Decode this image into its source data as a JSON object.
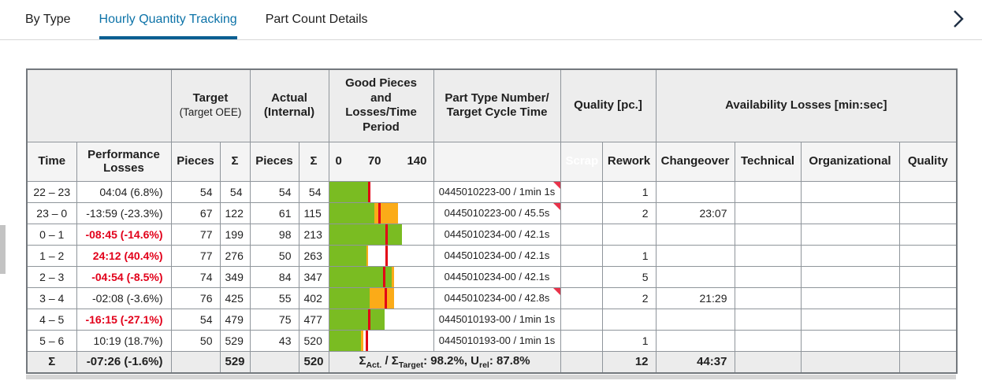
{
  "tabs": {
    "items": [
      {
        "label": "By Type",
        "active": false
      },
      {
        "label": "Hourly Quantity Tracking",
        "active": true
      },
      {
        "label": "Part Count Details",
        "active": false
      }
    ]
  },
  "colors": {
    "tab_active": "#0d73a8",
    "tab_underline": "#0a5f92",
    "scrap": "#ea3e53",
    "rework": "#f5b440",
    "changeover": "#b7d387",
    "technical": "#88a9c6",
    "organizational": "#f8d286",
    "quality": "#ee8090",
    "bar_green": "#7abc22",
    "bar_loss": "#fbab18",
    "bar_target": "#e30016",
    "alert_red": "#e2001a",
    "flag": "#e8334a"
  },
  "table": {
    "group_header": {
      "target_title": "Target",
      "target_sub": "(Target OEE)",
      "actual_title": "Actual (Internal)",
      "good_pieces": "Good Pieces and Losses/Time Period",
      "part_type": "Part Type Number/ Target Cycle Time",
      "quality_pc": "Quality [pc.]",
      "availability": "Availability Losses [min:sec]"
    },
    "col_header": {
      "time": "Time",
      "performance": "Performance Losses",
      "pieces1": "Pieces",
      "sigma1": "Σ",
      "pieces2": "Pieces",
      "sigma2": "Σ",
      "axis": {
        "min": "0",
        "mid": "70",
        "max": "140"
      },
      "scrap": "Scrap",
      "rework": "Rework",
      "changeover": "Changeover",
      "technical": "Technical",
      "organizational": "Organizational",
      "quality": "Quality"
    },
    "axis_max": 140,
    "rows": [
      {
        "time": "22 – 23",
        "perf": "04:04 (6.8%)",
        "perf_alert": false,
        "t_pieces": "54",
        "t_sum": "54",
        "a_pieces": "54",
        "a_sum": "54",
        "bar": {
          "green": 53,
          "loss_end": 55,
          "target": 54
        },
        "part": "0445010223-00 / 1min 1s",
        "flag": true,
        "scrap": "",
        "rework": "1",
        "changeover": "",
        "technical": "",
        "organizational": "",
        "quality": ""
      },
      {
        "time": "23 – 0",
        "perf": "-13:59 (-23.3%)",
        "perf_alert": false,
        "t_pieces": "67",
        "t_sum": "122",
        "a_pieces": "61",
        "a_sum": "115",
        "bar": {
          "green": 61,
          "loss_end": 93,
          "target": 67
        },
        "part": "0445010223-00 / 45.5s",
        "flag": true,
        "scrap": "",
        "rework": "2",
        "changeover": "23:07",
        "technical": "",
        "organizational": "",
        "quality": ""
      },
      {
        "time": "0 – 1",
        "perf": "-08:45 (-14.6%)",
        "perf_alert": true,
        "t_pieces": "77",
        "t_sum": "199",
        "a_pieces": "98",
        "a_sum": "213",
        "bar": {
          "green": 98,
          "loss_end": 98,
          "target": 77
        },
        "part": "0445010234-00 / 42.1s",
        "flag": false,
        "scrap": "",
        "rework": "",
        "changeover": "",
        "technical": "",
        "organizational": "",
        "quality": ""
      },
      {
        "time": "1 – 2",
        "perf": "24:12 (40.4%)",
        "perf_alert": true,
        "t_pieces": "77",
        "t_sum": "276",
        "a_pieces": "50",
        "a_sum": "263",
        "bar": {
          "green": 50,
          "loss_end": 52,
          "target": 77
        },
        "part": "0445010234-00 / 42.1s",
        "flag": false,
        "scrap": "",
        "rework": "1",
        "changeover": "",
        "technical": "",
        "organizational": "",
        "quality": ""
      },
      {
        "time": "2 – 3",
        "perf": "-04:54 (-8.5%)",
        "perf_alert": true,
        "t_pieces": "74",
        "t_sum": "349",
        "a_pieces": "84",
        "a_sum": "347",
        "bar": {
          "green": 84,
          "loss_end": 88,
          "target": 74
        },
        "part": "0445010234-00 / 42.1s",
        "flag": false,
        "scrap": "",
        "rework": "5",
        "changeover": "",
        "technical": "",
        "organizational": "",
        "quality": ""
      },
      {
        "time": "3 – 4",
        "perf": "-02:08 (-3.6%)",
        "perf_alert": false,
        "t_pieces": "76",
        "t_sum": "425",
        "a_pieces": "55",
        "a_sum": "402",
        "bar": {
          "green": 55,
          "loss_end": 88,
          "target": 76
        },
        "part": "0445010234-00 / 42.8s",
        "flag": true,
        "scrap": "",
        "rework": "2",
        "changeover": "21:29",
        "technical": "",
        "organizational": "",
        "quality": ""
      },
      {
        "time": "4 – 5",
        "perf": "-16:15 (-27.1%)",
        "perf_alert": true,
        "t_pieces": "54",
        "t_sum": "479",
        "a_pieces": "75",
        "a_sum": "477",
        "bar": {
          "green": 75,
          "loss_end": 75,
          "target": 54
        },
        "part": "0445010193-00 / 1min 1s",
        "flag": false,
        "scrap": "",
        "rework": "",
        "changeover": "",
        "technical": "",
        "organizational": "",
        "quality": ""
      },
      {
        "time": "5 – 6",
        "perf": "10:19 (18.7%)",
        "perf_alert": false,
        "t_pieces": "50",
        "t_sum": "529",
        "a_pieces": "43",
        "a_sum": "520",
        "bar": {
          "green": 43,
          "loss_end": 46,
          "target": 50
        },
        "part": "0445010193-00 / 1min 1s",
        "flag": false,
        "scrap": "",
        "rework": "1",
        "changeover": "",
        "technical": "",
        "organizational": "",
        "quality": ""
      }
    ],
    "sum": {
      "sigma": "Σ",
      "perf": "-07:26 (-1.6%)",
      "t_sum": "529",
      "a_sum": "520",
      "formula": {
        "p1": "Σ",
        "sub1": "Act.",
        "p2": " / Σ",
        "sub2": "Target",
        "p3": ": 98.2%, U",
        "sub3": "rel",
        "p4": ": 87.8%"
      },
      "scrap": "",
      "rework": "12",
      "changeover": "44:37",
      "technical": "",
      "organizational": "",
      "quality": ""
    }
  }
}
